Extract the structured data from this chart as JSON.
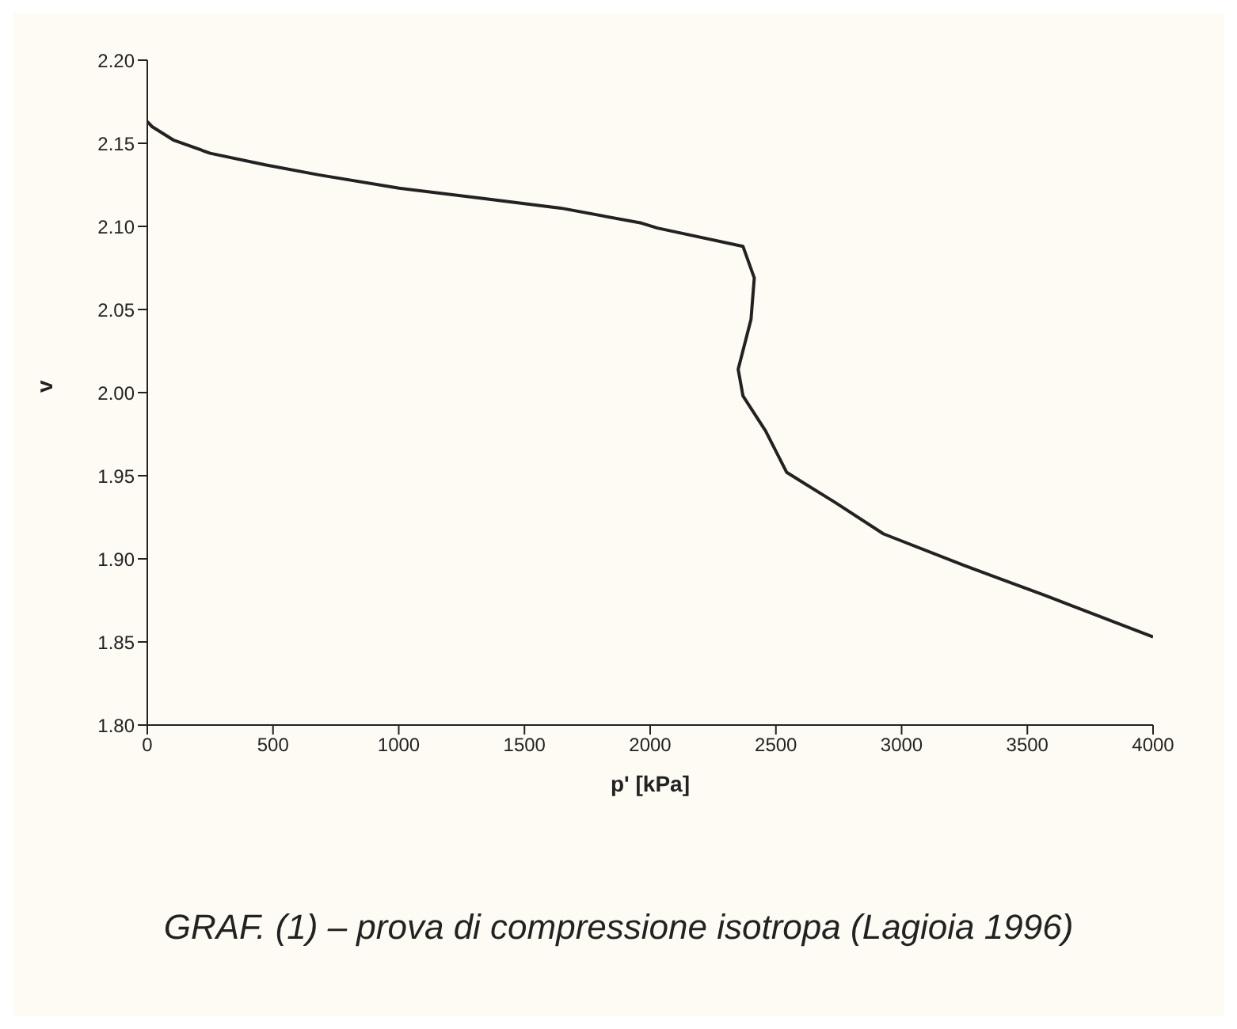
{
  "chart_data": {
    "type": "line",
    "xlabel": "p' [kPa]",
    "ylabel": "v",
    "annotations": [
      "GRAF. (1) – prova di compressione isotropa (Lagioia 1996)"
    ],
    "x": [
      0,
      19,
      103,
      250,
      469,
      681,
      1002,
      1323,
      1644,
      1965,
      2029,
      2369,
      2414,
      2401,
      2350,
      2369,
      2459,
      2543,
      2735,
      2928,
      3249,
      3570,
      4000
    ],
    "series": [
      {
        "color": "#222222",
        "values": [
          2.163,
          2.16,
          2.152,
          2.144,
          2.137,
          2.131,
          2.123,
          2.117,
          2.111,
          2.102,
          2.099,
          2.088,
          2.069,
          2.044,
          2.014,
          1.998,
          1.977,
          1.952,
          1.934,
          1.915,
          1.896,
          1.878,
          1.853
        ]
      }
    ],
    "xlim": [
      0,
      4000
    ],
    "xticks": [
      0,
      500,
      1000,
      1500,
      2000,
      2500,
      3000,
      3500,
      4000
    ],
    "ylim": [
      1.8,
      2.2
    ],
    "yticks": [
      {
        "value": 1.8,
        "label": "1.80"
      },
      1.85,
      {
        "value": 1.9,
        "label": "1.90"
      },
      1.95,
      {
        "value": 2.0,
        "label": "2.00"
      },
      2.05,
      {
        "value": 2.1,
        "label": "2.10"
      },
      2.15,
      {
        "value": 2.2,
        "label": "2.20"
      }
    ],
    "grid": false,
    "legend": false,
    "marker": "none",
    "line_style": "solid"
  }
}
